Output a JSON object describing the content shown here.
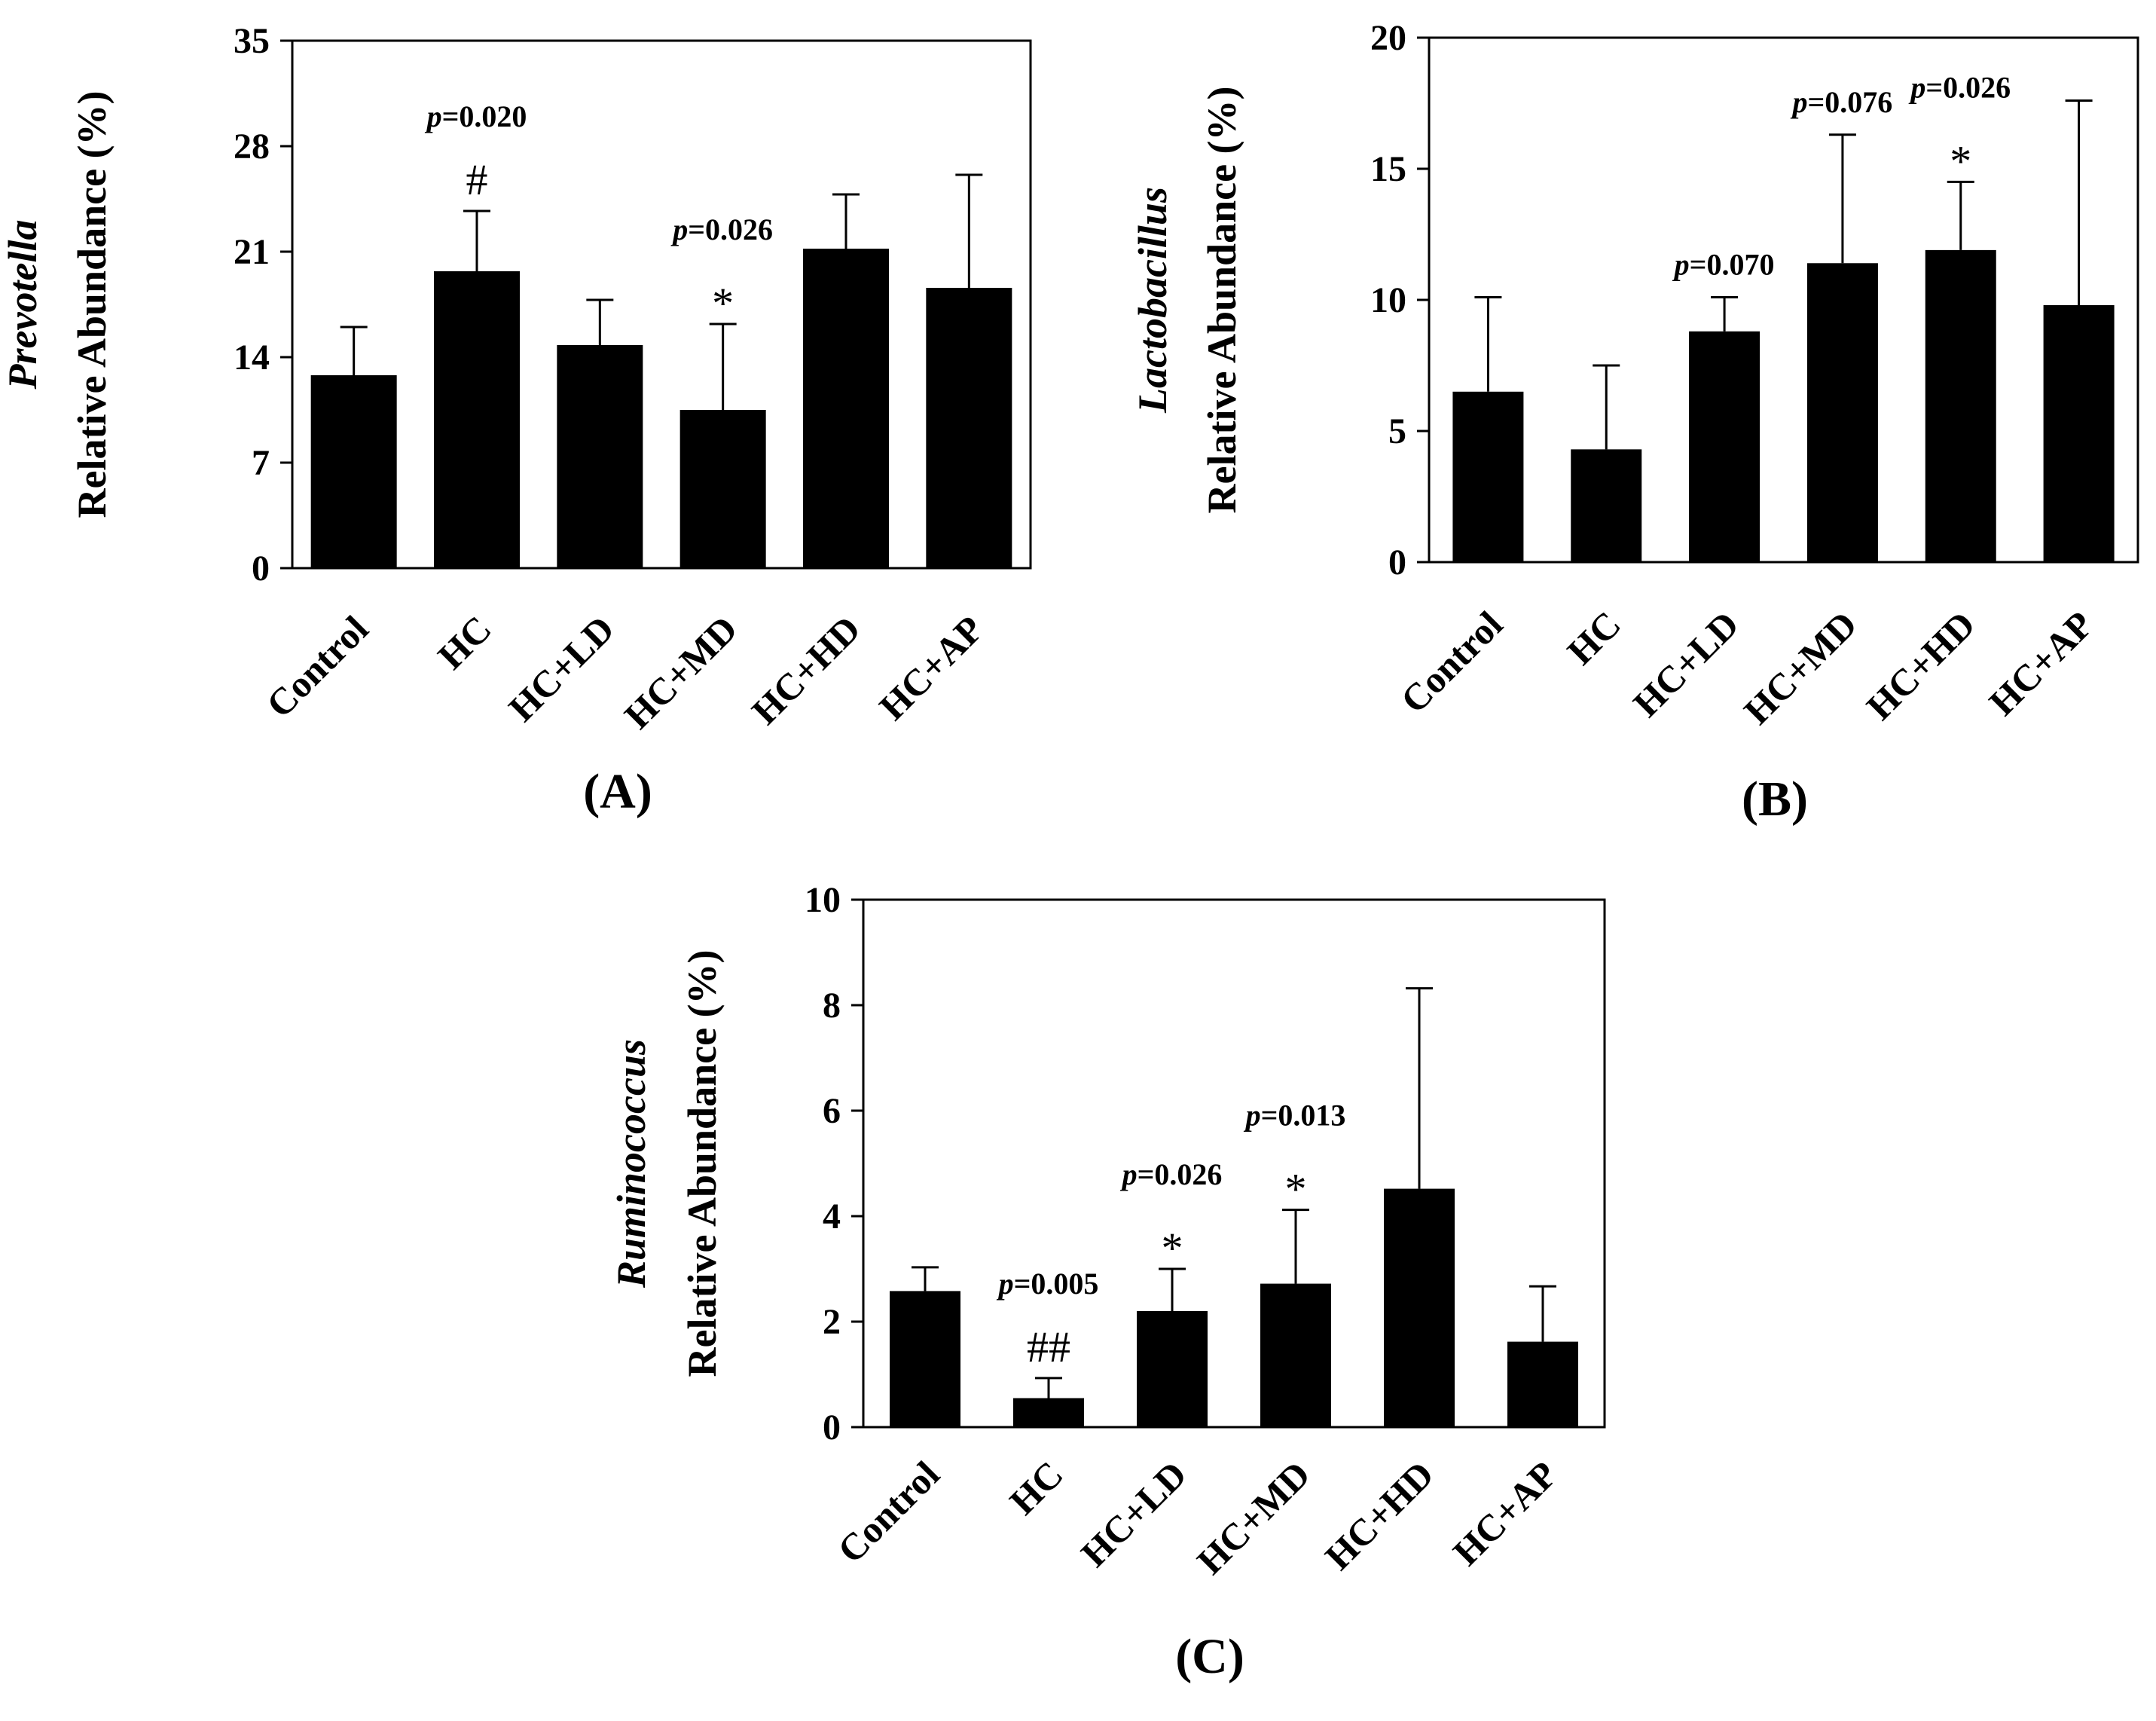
{
  "chart_data": [
    {
      "type": "bar",
      "panel_label": "(A)",
      "ylabel_italic": "Prevotella",
      "ylabel": "Relative Abundance (%)",
      "categories": [
        "Control",
        "HC",
        "HC+LD",
        "HC+MD",
        "HC+HD",
        "HC+AP"
      ],
      "values": [
        12.8,
        19.7,
        14.8,
        10.5,
        21.2,
        18.6
      ],
      "errors": [
        3.2,
        4.0,
        3.0,
        5.7,
        3.6,
        7.5
      ],
      "ylim": [
        0,
        35
      ],
      "yticks": [
        0,
        7,
        14,
        21,
        28,
        35
      ],
      "annotations": [
        {
          "category": "HC",
          "p_label": "p",
          "p_value": "=0.020",
          "symbol": "#"
        },
        {
          "category": "HC+MD",
          "p_label": "p",
          "p_value": "=0.026",
          "symbol": "*"
        }
      ]
    },
    {
      "type": "bar",
      "panel_label": "(B)",
      "ylabel_italic": "Lactobacillus",
      "ylabel": "Relative Abundance (%)",
      "categories": [
        "Control",
        "HC",
        "HC+LD",
        "HC+MD",
        "HC+HD",
        "HC+AP"
      ],
      "values": [
        6.5,
        4.3,
        8.8,
        11.4,
        11.9,
        9.8
      ],
      "errors": [
        3.6,
        3.2,
        1.3,
        4.9,
        2.6,
        7.8
      ],
      "ylim": [
        0,
        20
      ],
      "yticks": [
        0,
        5,
        10,
        15,
        20
      ],
      "annotations": [
        {
          "category": "HC+LD",
          "p_label": "p",
          "p_value": "=0.070",
          "symbol": ""
        },
        {
          "category": "HC+MD",
          "p_label": "p",
          "p_value": "=0.076",
          "symbol": ""
        },
        {
          "category": "HC+HD",
          "p_label": "p",
          "p_value": "=0.026",
          "symbol": "*"
        }
      ]
    },
    {
      "type": "bar",
      "panel_label": "(C)",
      "ylabel_italic": "Ruminococcus",
      "ylabel": "Relative Abundance (%)",
      "categories": [
        "Control",
        "HC",
        "HC+LD",
        "HC+MD",
        "HC+HD",
        "HC+AP"
      ],
      "values": [
        2.58,
        0.55,
        2.2,
        2.72,
        4.52,
        1.62
      ],
      "errors": [
        0.45,
        0.38,
        0.8,
        1.4,
        3.8,
        1.05
      ],
      "ylim": [
        0,
        10
      ],
      "yticks": [
        0,
        2,
        4,
        6,
        8,
        10
      ],
      "annotations": [
        {
          "category": "HC",
          "p_label": "p",
          "p_value": "=0.005",
          "symbol": "##"
        },
        {
          "category": "HC+LD",
          "p_label": "p",
          "p_value": "=0.026",
          "symbol": "*"
        },
        {
          "category": "HC+MD",
          "p_label": "p",
          "p_value": "=0.013",
          "symbol": "*"
        }
      ]
    }
  ]
}
